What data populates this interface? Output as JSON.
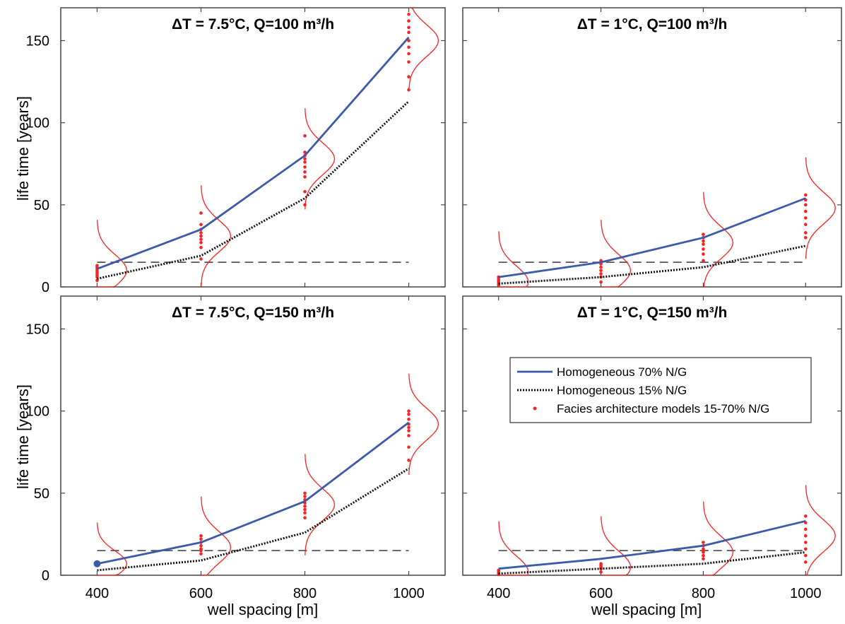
{
  "figure": {
    "xlabel": "well spacing [m]",
    "ylabel": "life time [years]"
  },
  "legend": {
    "entries": [
      {
        "label": "Homogeneous 70% N/G",
        "color": "#3c5aaa",
        "style": "solid"
      },
      {
        "label": "Homogeneous 15% N/G",
        "color": "#111111",
        "style": "dotted"
      },
      {
        "label": "Facies architecture models 15-70% N/G",
        "color": "#ff2020",
        "style": "dot"
      }
    ]
  },
  "chart_data": [
    {
      "type": "line",
      "title": "ΔT = 7.5°C, Q=100 m³/h",
      "xlabel": "",
      "ylabel": "life time [years]",
      "x": [
        400,
        600,
        800,
        1000
      ],
      "xticks": [
        "400",
        "600",
        "800",
        "1000"
      ],
      "yticks": [
        "0",
        "50",
        "100",
        "150"
      ],
      "xlim": [
        330,
        1070
      ],
      "ylim": [
        0,
        170
      ],
      "grid": false,
      "threshold": 15,
      "series": [
        {
          "name": "Homogeneous 70% N/G",
          "values": [
            11,
            35,
            80,
            152
          ],
          "color": "#3c5aaa",
          "style": "solid"
        },
        {
          "name": "Homogeneous 15% N/G",
          "values": [
            5,
            19,
            54,
            113
          ],
          "color": "#111111",
          "style": "dotted"
        }
      ],
      "facies_models": [
        {
          "x": 400,
          "values": [
            4,
            6,
            7,
            8,
            9,
            10,
            11,
            12,
            13
          ],
          "peak": 10
        },
        {
          "x": 600,
          "values": [
            17,
            24,
            27,
            29,
            31,
            33,
            35,
            38,
            45
          ],
          "peak": 31
        },
        {
          "x": 800,
          "values": [
            50,
            58,
            67,
            70,
            73,
            76,
            78,
            80,
            82,
            92
          ],
          "peak": 78
        },
        {
          "x": 1000,
          "values": [
            120,
            128,
            137,
            142,
            146,
            150,
            155,
            158,
            162,
            166
          ],
          "peak": 150
        }
      ]
    },
    {
      "type": "line",
      "title": "ΔT = 1°C, Q=100 m³/h",
      "xlabel": "",
      "ylabel": "",
      "x": [
        400,
        600,
        800,
        1000
      ],
      "xticks": [
        "400",
        "600",
        "800",
        "1000"
      ],
      "yticks": [
        "0",
        "50",
        "100",
        "150"
      ],
      "xlim": [
        330,
        1070
      ],
      "ylim": [
        0,
        170
      ],
      "grid": false,
      "threshold": 15,
      "series": [
        {
          "name": "Homogeneous 70% N/G",
          "values": [
            6,
            15,
            30,
            54
          ],
          "color": "#3c5aaa",
          "style": "solid"
        },
        {
          "name": "Homogeneous 15% N/G",
          "values": [
            2,
            6,
            12,
            25
          ],
          "color": "#111111",
          "style": "dotted"
        }
      ],
      "facies_models": [
        {
          "x": 400,
          "values": [
            1,
            2,
            3,
            4,
            5,
            6
          ],
          "peak": 3
        },
        {
          "x": 600,
          "values": [
            3,
            6,
            8,
            10,
            12,
            14,
            16
          ],
          "peak": 10
        },
        {
          "x": 800,
          "values": [
            16,
            20,
            23,
            26,
            28,
            30,
            32
          ],
          "peak": 27
        },
        {
          "x": 1000,
          "values": [
            30,
            33,
            38,
            42,
            46,
            50,
            53,
            56
          ],
          "peak": 48
        }
      ]
    },
    {
      "type": "line",
      "title": "ΔT = 7.5°C, Q=150 m³/h",
      "xlabel": "well spacing [m]",
      "ylabel": "life time [years]",
      "x": [
        400,
        600,
        800,
        1000
      ],
      "xticks": [
        "400",
        "600",
        "800",
        "1000"
      ],
      "yticks": [
        "0",
        "50",
        "100",
        "150"
      ],
      "xlim": [
        330,
        1070
      ],
      "ylim": [
        0,
        170
      ],
      "grid": false,
      "threshold": 15,
      "series": [
        {
          "name": "Homogeneous 70% N/G",
          "values": [
            7,
            20,
            45,
            93
          ],
          "color": "#3c5aaa",
          "style": "solid"
        },
        {
          "name": "Homogeneous 15% N/G",
          "values": [
            3,
            9,
            26,
            65
          ],
          "color": "#111111",
          "style": "dotted"
        }
      ],
      "facies_models": [
        {
          "x": 400,
          "values": [
            7
          ],
          "peak": 7
        },
        {
          "x": 600,
          "values": [
            13,
            15,
            16,
            18,
            20,
            22,
            24
          ],
          "peak": 17
        },
        {
          "x": 800,
          "values": [
            35,
            38,
            40,
            42,
            44,
            46,
            48,
            50
          ],
          "peak": 43
        },
        {
          "x": 1000,
          "values": [
            70,
            78,
            85,
            88,
            90,
            92,
            95,
            98,
            100
          ],
          "peak": 92
        }
      ]
    },
    {
      "type": "line",
      "title": "ΔT = 1°C, Q=150 m³/h",
      "xlabel": "well spacing [m]",
      "ylabel": "",
      "x": [
        400,
        600,
        800,
        1000
      ],
      "xticks": [
        "400",
        "600",
        "800",
        "1000"
      ],
      "yticks": [
        "0",
        "50",
        "100",
        "150"
      ],
      "xlim": [
        330,
        1070
      ],
      "ylim": [
        0,
        170
      ],
      "grid": false,
      "threshold": 15,
      "legend": "center-right",
      "series": [
        {
          "name": "Homogeneous 70% N/G",
          "values": [
            4,
            10,
            18,
            33
          ],
          "color": "#3c5aaa",
          "style": "solid"
        },
        {
          "name": "Homogeneous 15% N/G",
          "values": [
            1,
            4,
            7,
            14
          ],
          "color": "#111111",
          "style": "dotted"
        }
      ],
      "facies_models": [
        {
          "x": 400,
          "values": [
            0.5,
            1,
            2,
            3
          ],
          "peak": 2
        },
        {
          "x": 600,
          "values": [
            2,
            4,
            5,
            6,
            7
          ],
          "peak": 5
        },
        {
          "x": 800,
          "values": [
            10,
            12,
            14,
            16,
            18,
            20
          ],
          "peak": 14
        },
        {
          "x": 1000,
          "values": [
            8,
            12,
            16,
            20,
            24,
            28,
            32,
            36
          ],
          "peak": 24
        }
      ]
    }
  ]
}
